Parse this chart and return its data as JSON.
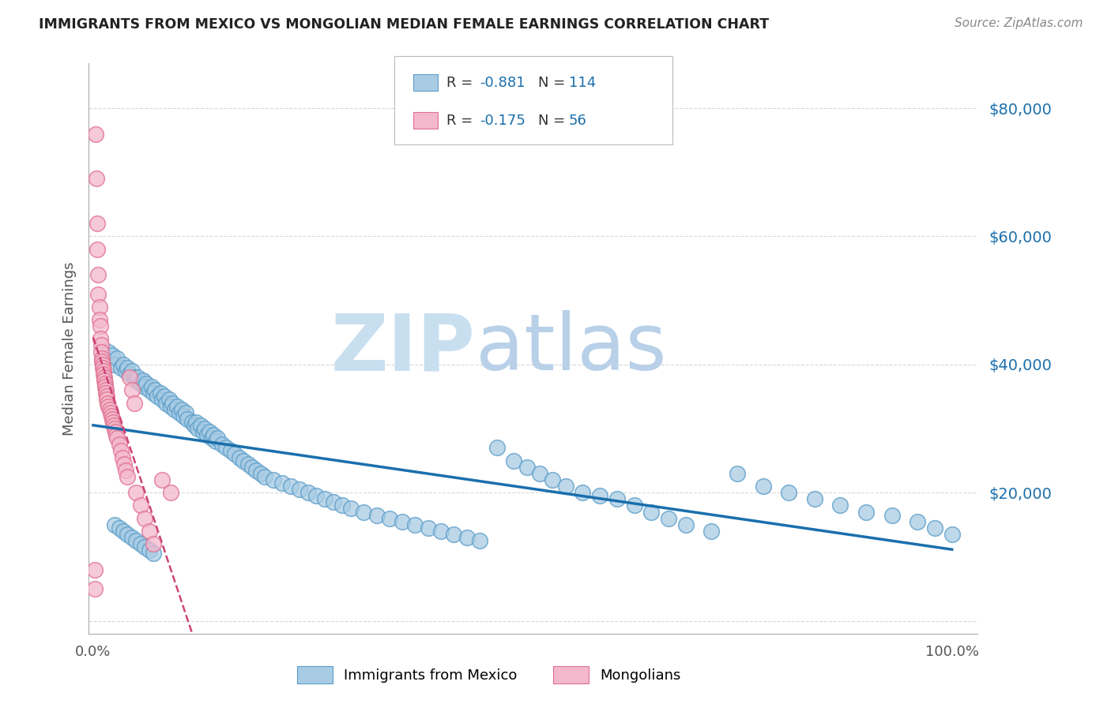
{
  "title": "IMMIGRANTS FROM MEXICO VS MONGOLIAN MEDIAN FEMALE EARNINGS CORRELATION CHART",
  "source": "Source: ZipAtlas.com",
  "ylabel": "Median Female Earnings",
  "y_ticks": [
    0,
    20000,
    40000,
    60000,
    80000
  ],
  "y_tick_labels": [
    "",
    "$20,000",
    "$40,000",
    "$60,000",
    "$80,000"
  ],
  "blue_R": -0.881,
  "blue_N": 114,
  "pink_R": -0.175,
  "pink_N": 56,
  "blue_color": "#a8cce4",
  "pink_color": "#f4b8cc",
  "blue_edge_color": "#5b9dc9",
  "pink_edge_color": "#e07090",
  "blue_line_color": "#1a6fad",
  "pink_line_color": "#cc4477",
  "watermark_zip": "ZIP",
  "watermark_atlas": "atlas",
  "watermark_color_zip": "#c8dff0",
  "watermark_color_atlas": "#b8d0e8",
  "background_color": "#ffffff",
  "grid_color": "#d8d8d8",
  "blue_x": [
    0.018,
    0.022,
    0.025,
    0.028,
    0.032,
    0.035,
    0.038,
    0.04,
    0.042,
    0.045,
    0.048,
    0.05,
    0.052,
    0.055,
    0.058,
    0.06,
    0.062,
    0.065,
    0.068,
    0.07,
    0.072,
    0.075,
    0.078,
    0.08,
    0.083,
    0.085,
    0.088,
    0.09,
    0.092,
    0.095,
    0.098,
    0.1,
    0.103,
    0.105,
    0.108,
    0.11,
    0.115,
    0.118,
    0.12,
    0.122,
    0.125,
    0.128,
    0.13,
    0.133,
    0.135,
    0.138,
    0.14,
    0.143,
    0.145,
    0.15,
    0.155,
    0.16,
    0.165,
    0.17,
    0.175,
    0.18,
    0.185,
    0.19,
    0.195,
    0.2,
    0.21,
    0.22,
    0.23,
    0.24,
    0.25,
    0.26,
    0.27,
    0.28,
    0.29,
    0.3,
    0.315,
    0.33,
    0.345,
    0.36,
    0.375,
    0.39,
    0.405,
    0.42,
    0.435,
    0.45,
    0.47,
    0.49,
    0.505,
    0.52,
    0.535,
    0.55,
    0.57,
    0.59,
    0.61,
    0.63,
    0.65,
    0.67,
    0.69,
    0.72,
    0.75,
    0.78,
    0.81,
    0.84,
    0.87,
    0.9,
    0.93,
    0.96,
    0.98,
    1.0,
    0.025,
    0.03,
    0.035,
    0.04,
    0.045,
    0.05,
    0.055,
    0.06,
    0.065,
    0.07
  ],
  "blue_y": [
    42000,
    41500,
    40000,
    41000,
    39500,
    40000,
    39000,
    39500,
    38500,
    39000,
    38000,
    37500,
    38000,
    37000,
    37500,
    36500,
    37000,
    36000,
    36500,
    35500,
    36000,
    35000,
    35500,
    34500,
    35000,
    34000,
    34500,
    33500,
    34000,
    33000,
    33500,
    32500,
    33000,
    32000,
    32500,
    31500,
    31000,
    30500,
    31000,
    30000,
    30500,
    29500,
    30000,
    29000,
    29500,
    28500,
    29000,
    28000,
    28500,
    27500,
    27000,
    26500,
    26000,
    25500,
    25000,
    24500,
    24000,
    23500,
    23000,
    22500,
    22000,
    21500,
    21000,
    20500,
    20000,
    19500,
    19000,
    18500,
    18000,
    17500,
    17000,
    16500,
    16000,
    15500,
    15000,
    14500,
    14000,
    13500,
    13000,
    12500,
    27000,
    25000,
    24000,
    23000,
    22000,
    21000,
    20000,
    19500,
    19000,
    18000,
    17000,
    16000,
    15000,
    14000,
    23000,
    21000,
    20000,
    19000,
    18000,
    17000,
    16500,
    15500,
    14500,
    13500,
    15000,
    14500,
    14000,
    13500,
    13000,
    12500,
    12000,
    11500,
    11000,
    10500
  ],
  "pink_x": [
    0.003,
    0.004,
    0.005,
    0.005,
    0.006,
    0.006,
    0.007,
    0.007,
    0.008,
    0.008,
    0.009,
    0.009,
    0.01,
    0.01,
    0.011,
    0.011,
    0.012,
    0.012,
    0.013,
    0.013,
    0.014,
    0.014,
    0.015,
    0.015,
    0.016,
    0.016,
    0.017,
    0.018,
    0.019,
    0.02,
    0.021,
    0.022,
    0.023,
    0.024,
    0.025,
    0.026,
    0.027,
    0.028,
    0.03,
    0.032,
    0.034,
    0.036,
    0.038,
    0.04,
    0.042,
    0.045,
    0.048,
    0.05,
    0.055,
    0.06,
    0.065,
    0.07,
    0.08,
    0.09,
    0.002,
    0.002
  ],
  "pink_y": [
    76000,
    69000,
    62000,
    58000,
    54000,
    51000,
    49000,
    47000,
    46000,
    44000,
    43000,
    42000,
    41000,
    40500,
    40000,
    39500,
    39000,
    38500,
    38000,
    37500,
    37000,
    36500,
    36000,
    35500,
    35000,
    34500,
    34000,
    33500,
    33000,
    32500,
    32000,
    31500,
    31000,
    30500,
    30000,
    29500,
    29000,
    28500,
    27500,
    26500,
    25500,
    24500,
    23500,
    22500,
    38000,
    36000,
    34000,
    20000,
    18000,
    16000,
    14000,
    12000,
    22000,
    20000,
    8000,
    5000
  ]
}
